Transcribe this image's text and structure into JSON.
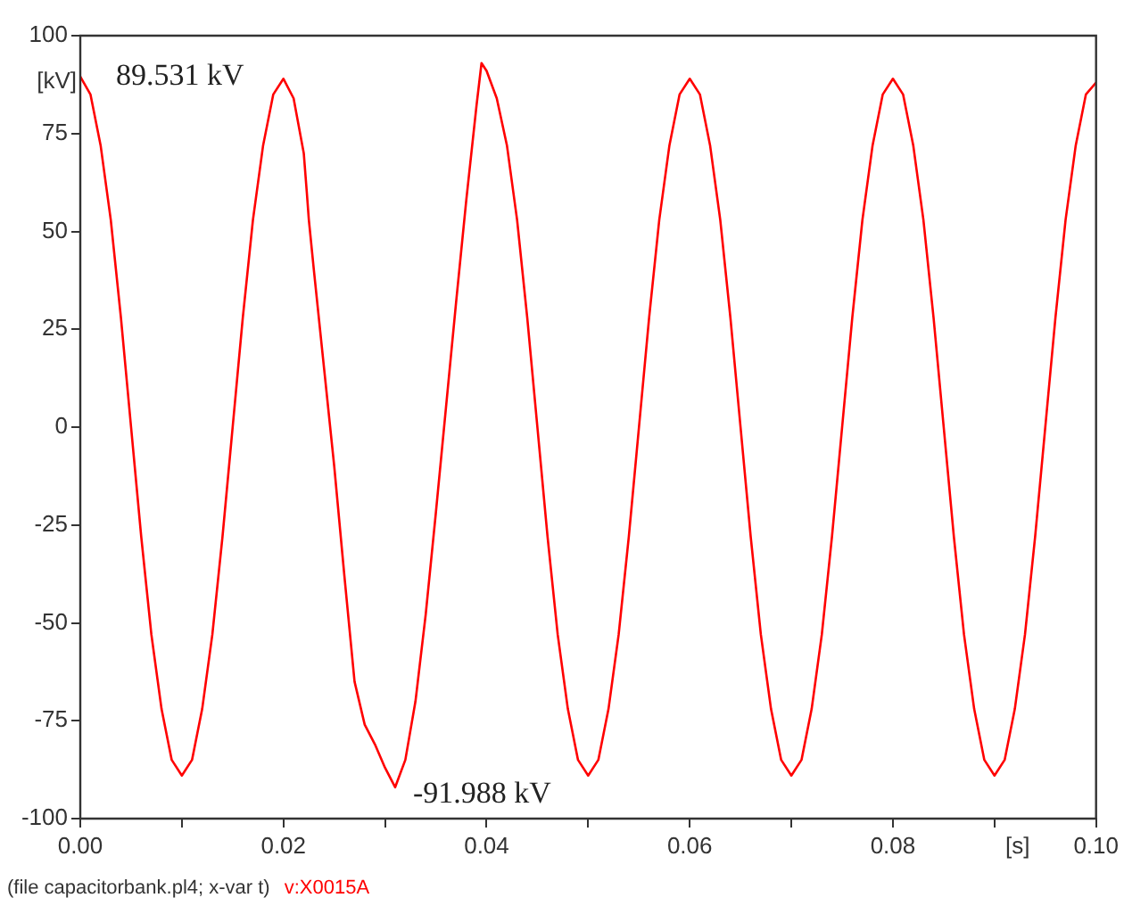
{
  "chart_data": {
    "type": "line",
    "xlabel": "[s]",
    "ylabel": "[kV]",
    "xlim": [
      0,
      0.1
    ],
    "ylim": [
      -100,
      100
    ],
    "xticks": [
      {
        "value": 0,
        "label": "0.00"
      },
      {
        "value": 0.01,
        "label": null
      },
      {
        "value": 0.02,
        "label": "0.02"
      },
      {
        "value": 0.03,
        "label": null
      },
      {
        "value": 0.04,
        "label": "0.04"
      },
      {
        "value": 0.05,
        "label": null
      },
      {
        "value": 0.06,
        "label": "0.06"
      },
      {
        "value": 0.07,
        "label": null
      },
      {
        "value": 0.08,
        "label": "0.08"
      },
      {
        "value": 0.09,
        "label": null
      },
      {
        "value": 0.1,
        "label": "0.10"
      }
    ],
    "yticks": [
      -100,
      -75,
      -50,
      -25,
      0,
      25,
      50,
      75,
      100
    ],
    "grid": false,
    "legend": false,
    "marker": "none",
    "line_style": "solid",
    "annotations": [
      {
        "text": "89.531 kV",
        "x": 0,
        "y": 89.531
      },
      {
        "text": "-91.988 kV",
        "x": 0.031,
        "y": -91.988
      },
      "(file capacitorbank.pl4; x-var t)"
    ],
    "series": [
      {
        "name": "v:X0015A",
        "color": "#ff0000",
        "x": [
          0,
          0.001,
          0.002,
          0.003,
          0.004,
          0.005,
          0.006,
          0.007,
          0.008,
          0.009,
          0.01,
          0.011,
          0.012,
          0.013,
          0.014,
          0.015,
          0.016,
          0.017,
          0.018,
          0.019,
          0.02,
          0.021,
          0.022,
          0.0223,
          0.0225,
          0.023,
          0.024,
          0.025,
          0.026,
          0.027,
          0.028,
          0.029,
          0.03,
          0.031,
          0.032,
          0.033,
          0.034,
          0.035,
          0.036,
          0.037,
          0.038,
          0.039,
          0.0395,
          0.04,
          0.041,
          0.042,
          0.043,
          0.044,
          0.045,
          0.046,
          0.047,
          0.048,
          0.049,
          0.05,
          0.051,
          0.052,
          0.053,
          0.054,
          0.055,
          0.056,
          0.057,
          0.058,
          0.059,
          0.06,
          0.061,
          0.062,
          0.063,
          0.064,
          0.065,
          0.066,
          0.067,
          0.068,
          0.069,
          0.07,
          0.071,
          0.072,
          0.073,
          0.074,
          0.075,
          0.076,
          0.077,
          0.078,
          0.079,
          0.08,
          0.081,
          0.082,
          0.083,
          0.084,
          0.085,
          0.086,
          0.087,
          0.088,
          0.089,
          0.09,
          0.091,
          0.092,
          0.093,
          0.094,
          0.095,
          0.096,
          0.097,
          0.098,
          0.099,
          0.1
        ],
        "values": [
          89.531,
          85,
          72,
          53,
          28,
          0,
          -28,
          -53,
          -72,
          -85,
          -89,
          -85,
          -72,
          -53,
          -28,
          0,
          28,
          53,
          72,
          85,
          89,
          84,
          70,
          60,
          53,
          40,
          15,
          -10,
          -38,
          -65,
          -76,
          -81,
          -87,
          -91.988,
          -85,
          -70,
          -48,
          -22,
          5,
          32,
          58,
          82,
          93,
          91,
          84,
          72,
          53,
          28,
          0,
          -28,
          -53,
          -72,
          -85,
          -89,
          -85,
          -72,
          -53,
          -28,
          0,
          28,
          53,
          72,
          85,
          89,
          85,
          72,
          53,
          28,
          0,
          -28,
          -53,
          -72,
          -85,
          -89,
          -85,
          -72,
          -53,
          -28,
          0,
          28,
          53,
          72,
          85,
          89,
          85,
          72,
          53,
          28,
          0,
          -28,
          -53,
          -72,
          -85,
          -89,
          -85,
          -72,
          -53,
          -28,
          0,
          28,
          53,
          72,
          85,
          88
        ]
      }
    ]
  }
}
